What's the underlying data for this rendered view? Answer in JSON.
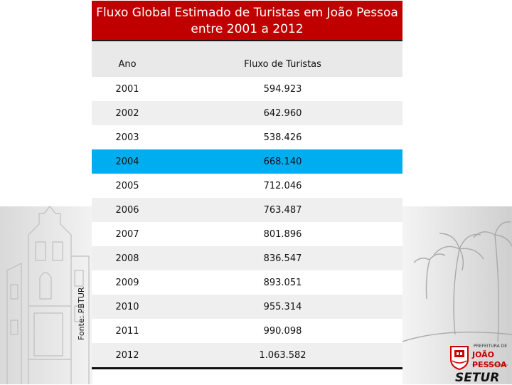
{
  "title": "Fluxo Global Estimado de Turistas em João Pessoa entre 2001 a 2012",
  "columns": [
    "Ano",
    "Fluxo de Turistas"
  ],
  "rows": [
    {
      "year": "2001",
      "value": "594.923"
    },
    {
      "year": "2002",
      "value": "642.960"
    },
    {
      "year": "2003",
      "value": "538.426"
    },
    {
      "year": "2004",
      "value": "668.140"
    },
    {
      "year": "2005",
      "value": "712.046"
    },
    {
      "year": "2006",
      "value": "763.487"
    },
    {
      "year": "2007",
      "value": "801.896"
    },
    {
      "year": "2008",
      "value": "836.547"
    },
    {
      "year": "2009",
      "value": "893.051"
    },
    {
      "year": "2010",
      "value": "955.314"
    },
    {
      "year": "2011",
      "value": "990.098"
    },
    {
      "year": "2012",
      "value": "1.063.582"
    }
  ],
  "highlighted_year": "2004",
  "source": "Fonte: PBTUR",
  "logo": {
    "top_text": "PREFEITURA DE",
    "city": "JOÃO PESSOA",
    "name": "SETUR"
  },
  "colors": {
    "title_bg": "#c00000",
    "highlight": "#00aeef",
    "header_bg": "#e9e9e9"
  }
}
